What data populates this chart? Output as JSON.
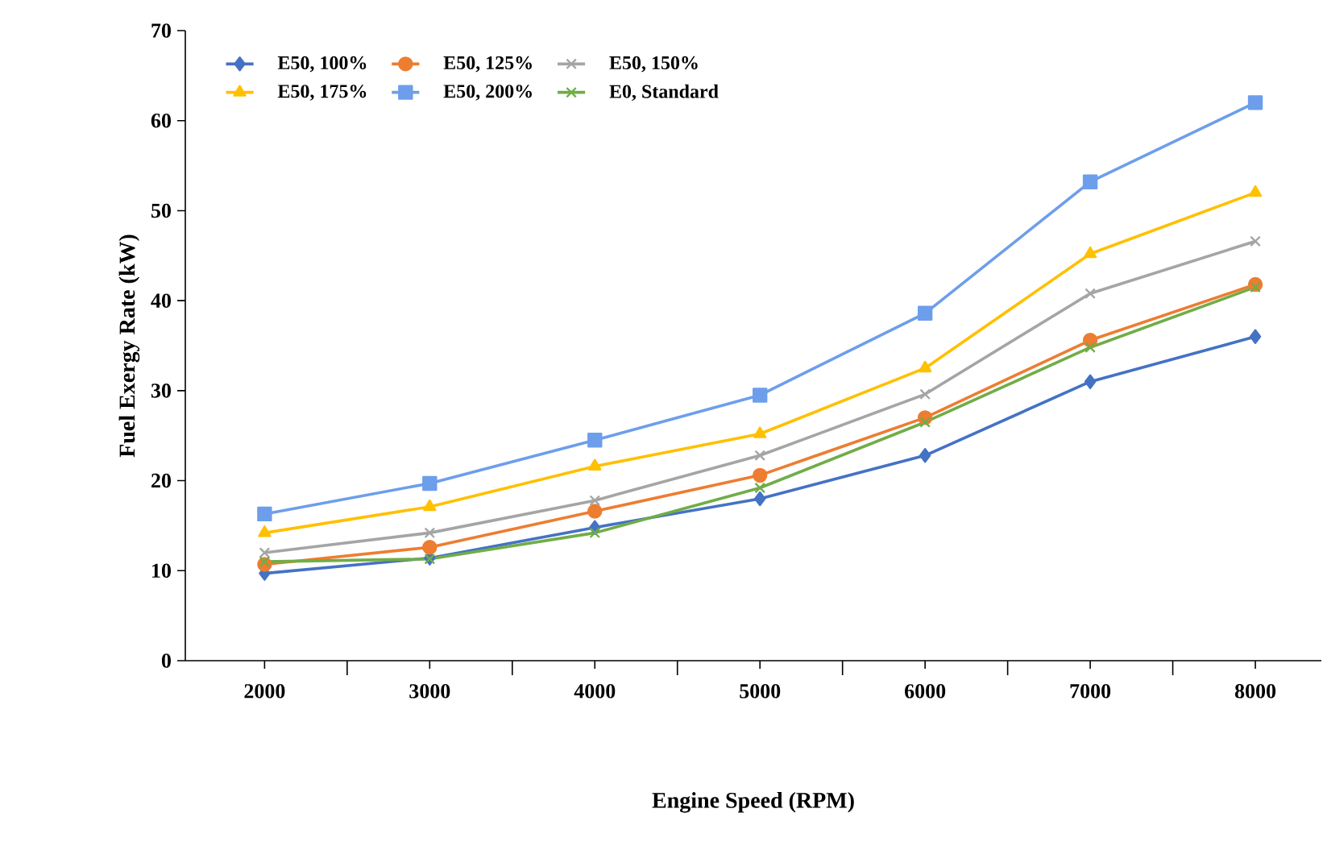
{
  "chart_data": {
    "type": "line",
    "xlabel": "Engine Speed (RPM)",
    "ylabel": "Fuel Exergy Rate (kW)",
    "categories": [
      "2000",
      "3000",
      "4000",
      "5000",
      "6000",
      "7000",
      "8000"
    ],
    "ylim": [
      0,
      70
    ],
    "yticks": [
      0,
      10,
      20,
      30,
      40,
      50,
      60,
      70
    ],
    "grid": false,
    "legend": "top left",
    "series": [
      {
        "name": "E50, 100%",
        "color": "#4472c4",
        "marker": "diamond",
        "values": [
          9.7,
          11.4,
          14.8,
          18.0,
          22.8,
          31.0,
          36.0
        ]
      },
      {
        "name": "E50, 125%",
        "color": "#ed7d31",
        "marker": "circle",
        "values": [
          10.7,
          12.6,
          16.6,
          20.6,
          27.0,
          35.6,
          41.8
        ]
      },
      {
        "name": "E50, 150%",
        "color": "#a5a5a5",
        "marker": "cross",
        "values": [
          12.0,
          14.2,
          17.8,
          22.8,
          29.6,
          40.8,
          46.6
        ]
      },
      {
        "name": "E50, 175%",
        "color": "#ffc000",
        "marker": "triangle",
        "values": [
          14.2,
          17.1,
          21.6,
          25.2,
          32.5,
          45.2,
          52.0
        ]
      },
      {
        "name": "E50, 200%",
        "color": "#6d9eeb",
        "marker": "square",
        "values": [
          16.3,
          19.7,
          24.5,
          29.5,
          38.6,
          53.2,
          62.0
        ]
      },
      {
        "name": "E0, Standard",
        "color": "#70ad47",
        "marker": "cross",
        "values": [
          11.0,
          11.3,
          14.2,
          19.2,
          26.5,
          34.8,
          41.5
        ]
      }
    ]
  }
}
